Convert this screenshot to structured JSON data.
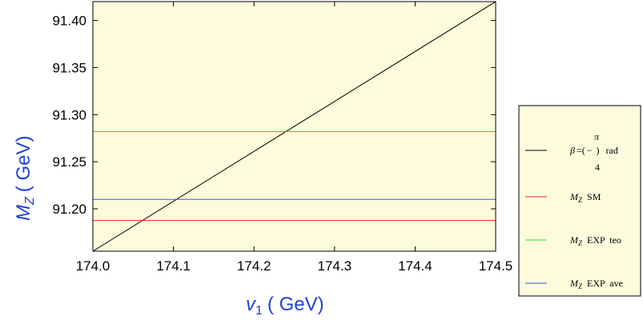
{
  "chart_data": {
    "type": "line",
    "xlabel_var": "v",
    "xlabel_sub": "1",
    "xlabel_unit": "( GeV)",
    "ylabel_var": "M",
    "ylabel_sub": "Z",
    "ylabel_unit": "( GeV)",
    "xlim": [
      174.0,
      174.5
    ],
    "ylim": [
      91.155,
      91.42
    ],
    "xticks": [
      "174.0",
      "174.1",
      "174.2",
      "174.3",
      "174.4",
      "174.5"
    ],
    "yticks": [
      "91.20",
      "91.25",
      "91.30",
      "91.35",
      "91.40"
    ],
    "grid": false,
    "legend_position": "right",
    "plot_background": "#fdfbdc",
    "series": [
      {
        "key": "beta",
        "color": "#000000",
        "kind": "line",
        "x": [
          174.0,
          174.5
        ],
        "y": [
          91.155,
          91.42
        ],
        "legend": {
          "symbol": "β",
          "eq": "=(",
          "frac_num": "π",
          "frac_bar": "−",
          "frac_den": "4",
          "close": ")",
          "unit": "rad"
        }
      },
      {
        "key": "mz_sm",
        "color": "#e8262a",
        "kind": "hline",
        "value": 91.1876,
        "legend": {
          "var": "M",
          "sub": "Z",
          "text": "SM"
        }
      },
      {
        "key": "mz_exp_teo",
        "color": "#27d63a",
        "kind": "hline",
        "value": 91.282,
        "legend": {
          "var": "M",
          "sub": "Z",
          "text": "EXP  teo"
        }
      },
      {
        "key": "mz_exp_ave",
        "color": "#3b57e0",
        "kind": "hline",
        "value": 91.21,
        "legend": {
          "var": "M",
          "sub": "Z",
          "text": "EXP  ave"
        }
      }
    ]
  }
}
